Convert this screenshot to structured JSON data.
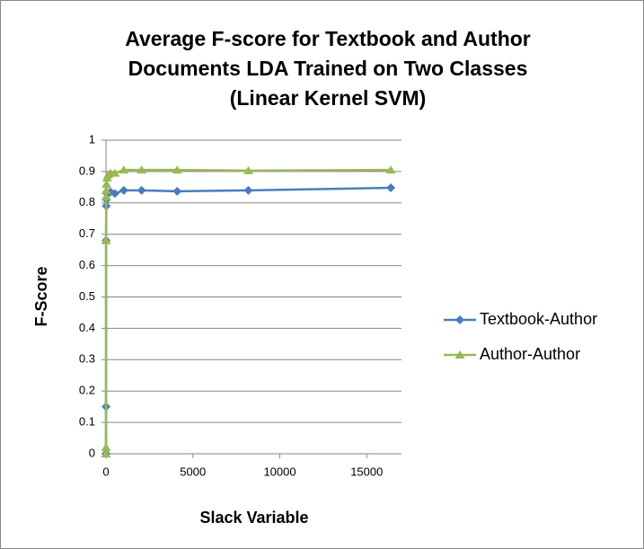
{
  "chart_data": {
    "type": "line",
    "title": [
      "Average F-score for Textbook and Author",
      "Documents LDA Trained on Two Classes",
      "(Linear Kernel SVM)"
    ],
    "x_label": "Slack Variable",
    "y_label": "F-Score",
    "x": [
      1,
      2,
      4,
      8,
      16,
      32,
      64,
      128,
      256,
      512,
      1024,
      2048,
      4096,
      8192,
      16384
    ],
    "series": [
      {
        "name": "Textbook-Author",
        "color": "#4a7ebb",
        "marker": "diamond",
        "values": [
          0,
          0,
          0.15,
          0.68,
          0.79,
          0.81,
          0.83,
          0.83,
          0.835,
          0.83,
          0.84,
          0.84,
          0.837,
          0.84,
          0.848
        ]
      },
      {
        "name": "Author-Author",
        "color": "#98b954",
        "marker": "triangle",
        "values": [
          0,
          0.02,
          0.68,
          0.82,
          0.84,
          0.86,
          0.88,
          0.89,
          0.895,
          0.895,
          0.905,
          0.905,
          0.905,
          0.903,
          0.905
        ]
      }
    ],
    "xlim": [
      0,
      17000
    ],
    "xticks": [
      0,
      5000,
      10000,
      15000
    ],
    "ylim": [
      0,
      1
    ],
    "yticks": [
      0,
      0.1,
      0.2,
      0.3,
      0.4,
      0.5,
      0.6,
      0.7,
      0.8,
      0.9,
      1
    ],
    "grid": true,
    "legend": "right"
  }
}
